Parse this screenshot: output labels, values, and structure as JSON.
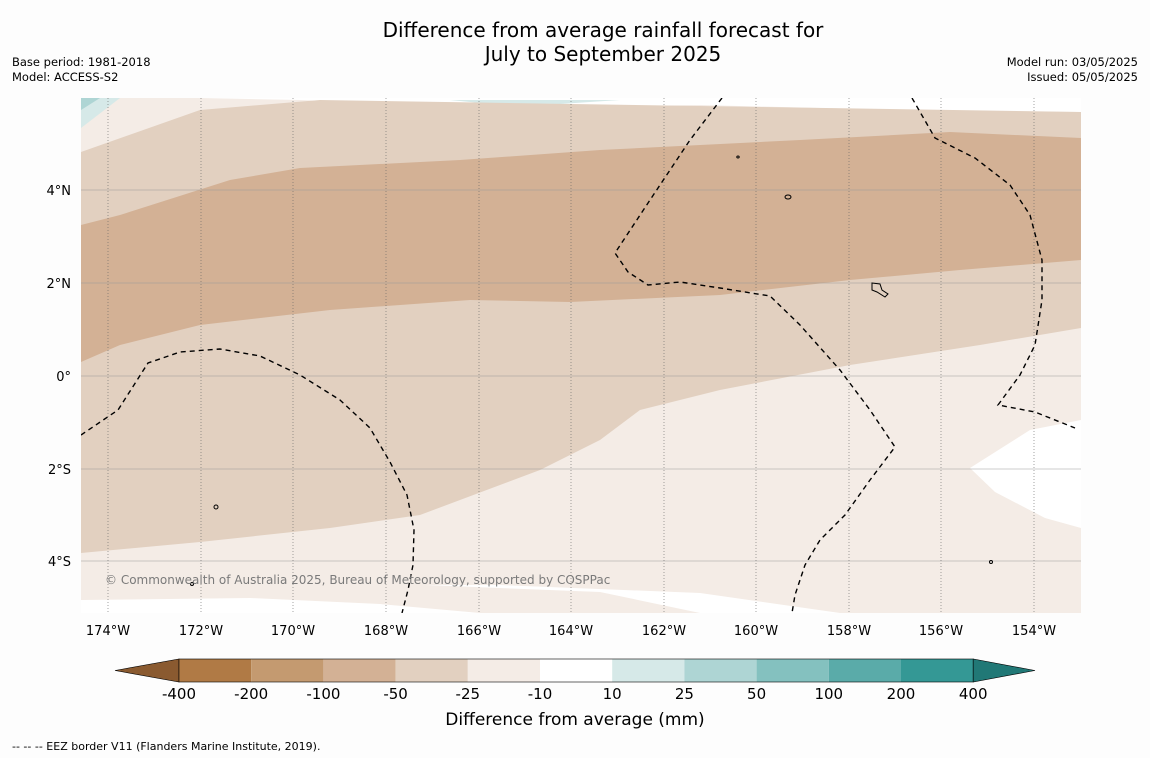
{
  "title": {
    "line1": "Difference from average rainfall forecast for",
    "line2": "July to September 2025"
  },
  "meta_left": {
    "base_period": "Base period: 1981-2018",
    "model": "Model: ACCESS-S2"
  },
  "meta_right": {
    "model_run": "Model run: 03/05/2025",
    "issued": "Issued: 05/05/2025"
  },
  "map": {
    "lon_ticks": [
      "174°W",
      "172°W",
      "170°W",
      "168°W",
      "166°W",
      "164°W",
      "162°W",
      "160°W",
      "158°W",
      "156°W",
      "154°W"
    ],
    "lat_ticks": [
      "4°N",
      "2°N",
      "0°",
      "2°S",
      "4°S"
    ],
    "copyright": "© Commonwealth of Australia 2025, Bureau of Meteorology, supported by COSPPac"
  },
  "colorbar": {
    "ticks": [
      "-400",
      "-200",
      "-100",
      "-50",
      "-25",
      "-10",
      "10",
      "25",
      "50",
      "100",
      "200",
      "400"
    ],
    "colors": [
      "#8a5a30",
      "#b07a45",
      "#c49a70",
      "#d3b195",
      "#e2d0c0",
      "#f4ece6",
      "#ffffff",
      "#d6e9e8",
      "#aed5d4",
      "#84c1bf",
      "#5aaba9",
      "#349895",
      "#217876"
    ],
    "label": "Difference from average (mm)"
  },
  "footnote": "--  --  -- EEZ border V11 (Flanders Marine Institute, 2019)."
}
